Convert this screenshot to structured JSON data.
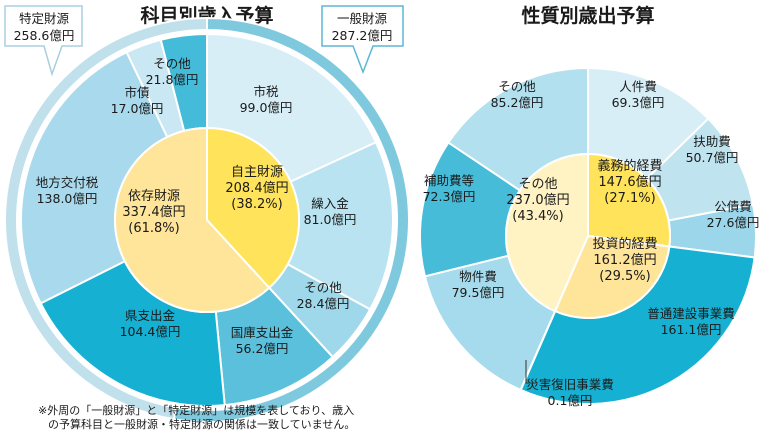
{
  "chart_data": [
    {
      "type": "pie",
      "title": "科目別歳入予算",
      "outer_ring": [
        {
          "name": "特定財源",
          "value": 258.6,
          "unit": "億円",
          "color": "#c0e0ec"
        },
        {
          "name": "一般財源",
          "value": 287.2,
          "unit": "億円",
          "color": "#7fc9df"
        }
      ],
      "middle_ring": [
        {
          "name": "市税",
          "value": 99.0,
          "unit": "億円",
          "color": "#d7eef6"
        },
        {
          "name": "繰入金",
          "value": 81.0,
          "unit": "億円",
          "color": "#b9e3f0"
        },
        {
          "name": "その他",
          "value": 28.4,
          "unit": "億円",
          "color": "#9fd8ea"
        },
        {
          "name": "国庫支出金",
          "value": 56.2,
          "unit": "億円",
          "color": "#5bc0db"
        },
        {
          "name": "県支出金",
          "value": 104.4,
          "unit": "億円",
          "color": "#16b1d2"
        },
        {
          "name": "地方交付税",
          "value": 138.0,
          "unit": "億円",
          "color": "#a8d9ec"
        },
        {
          "name": "市債",
          "value": 17.0,
          "unit": "億円",
          "color": "#c9e8f3"
        },
        {
          "name": "その他",
          "value": 21.8,
          "unit": "億円",
          "color": "#43bbd9"
        }
      ],
      "inner_ring": [
        {
          "name": "自主財源",
          "value": 208.4,
          "unit": "億円",
          "pct": "38.2%",
          "color": "#ffe35a"
        },
        {
          "name": "依存財源",
          "value": 337.4,
          "unit": "億円",
          "pct": "61.8%",
          "color": "#ffe59a"
        }
      ]
    },
    {
      "type": "pie",
      "title": "性質別歳出予算",
      "outer_ring": [
        {
          "name": "人件費",
          "value": 69.3,
          "unit": "億円",
          "color": "#d7eef6"
        },
        {
          "name": "扶助費",
          "value": 50.7,
          "unit": "億円",
          "color": "#bfe4f0"
        },
        {
          "name": "公債費",
          "value": 27.6,
          "unit": "億円",
          "color": "#9bd6ea"
        },
        {
          "name": "普通建設事業費",
          "value": 161.1,
          "unit": "億円",
          "color": "#16b1d2"
        },
        {
          "name": "災害復旧事業費",
          "value": 0.1,
          "unit": "億円",
          "color": "#0b95b8"
        },
        {
          "name": "物件費",
          "value": 79.5,
          "unit": "億円",
          "color": "#a5dbec"
        },
        {
          "name": "補助費等",
          "value": 72.3,
          "unit": "億円",
          "color": "#46bcd9"
        },
        {
          "name": "その他",
          "value": 85.2,
          "unit": "億円",
          "color": "#b2e0ef"
        }
      ],
      "inner_ring": [
        {
          "name": "義務的経費",
          "value": 147.6,
          "unit": "億円",
          "pct": "27.1%",
          "color": "#ffe35a"
        },
        {
          "name": "投資的経費",
          "value": 161.2,
          "unit": "億円",
          "pct": "29.5%",
          "color": "#ffe59a"
        },
        {
          "name": "その他",
          "value": 237.0,
          "unit": "億円",
          "pct": "43.4%",
          "color": "#fff3c4"
        }
      ]
    }
  ],
  "footnote": {
    "line1": "※外周の「一般財源」と「特定財源」は規模を表しており、歳入",
    "line2": "の予算科目と一般財源・特定財源の関係は一致していません。"
  }
}
